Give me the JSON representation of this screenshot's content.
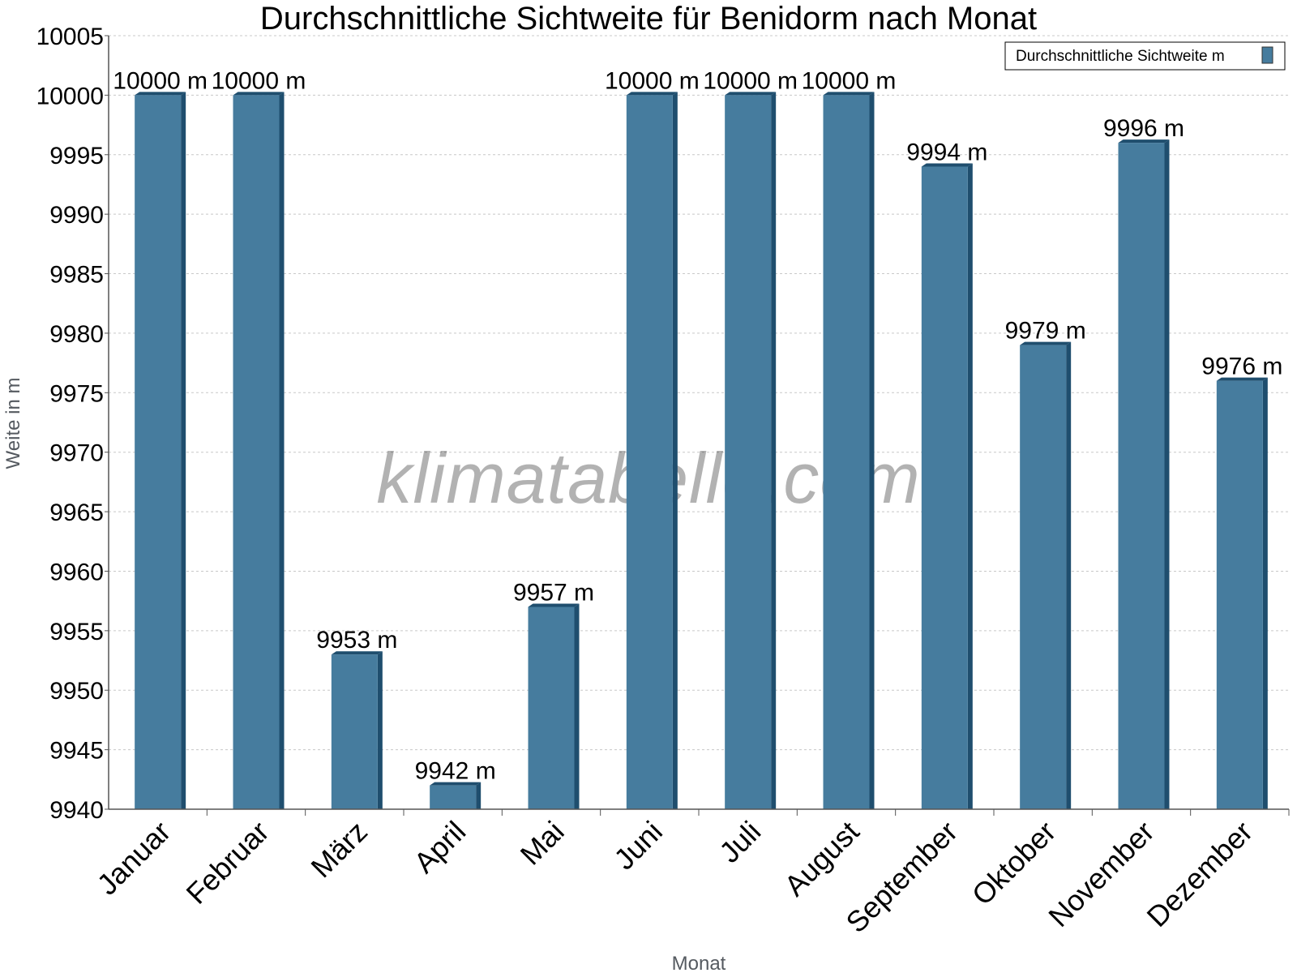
{
  "chart_data": {
    "type": "bar",
    "title": "Durchschnittliche Sichtweite für Benidorm nach Monat",
    "xlabel": "Monat",
    "ylabel": "Weite in m",
    "categories": [
      "Januar",
      "Februar",
      "März",
      "April",
      "Mai",
      "Juni",
      "Juli",
      "August",
      "September",
      "Oktober",
      "November",
      "Dezember"
    ],
    "series": [
      {
        "name": "Durchschnittliche Sichtweite m",
        "values": [
          10000,
          10000,
          9953,
          9942,
          9957,
          10000,
          10000,
          10000,
          9994,
          9979,
          9996,
          9976
        ],
        "labels": [
          "10000 m",
          "10000 m",
          "9953 m",
          "9942 m",
          "9957 m",
          "10000 m",
          "10000 m",
          "10000 m",
          "9994 m",
          "9979 m",
          "9996 m",
          "9976 m"
        ],
        "color": "#467c9e",
        "side_color": "#1f4e6e"
      }
    ],
    "ylim": [
      9940,
      10005
    ],
    "yticks": [
      9940,
      9945,
      9950,
      9955,
      9960,
      9965,
      9970,
      9975,
      9980,
      9985,
      9990,
      9995,
      10000,
      10005
    ],
    "grid": true,
    "legend_position": "top-right",
    "watermark": "klimatabelle.com"
  }
}
